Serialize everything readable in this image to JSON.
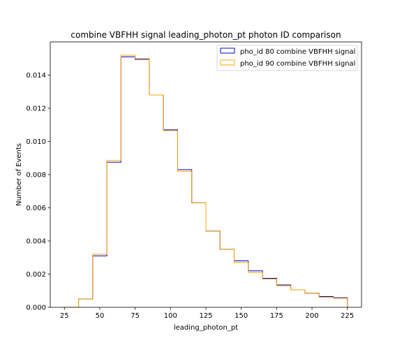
{
  "chart_data": {
    "type": "step-histogram",
    "title": "combine VBFHH signal leading_photon_pt photon ID comparison",
    "xlabel": "leading_photon_pt",
    "ylabel": "Number of Events",
    "xlim": [
      15,
      235
    ],
    "ylim": [
      0,
      0.016
    ],
    "x_ticks": [
      25,
      50,
      75,
      100,
      125,
      150,
      175,
      200,
      225
    ],
    "x_tick_labels": [
      "25",
      "50",
      "75",
      "100",
      "125",
      "150",
      "175",
      "200",
      "225"
    ],
    "y_ticks": [
      0,
      0.002,
      0.004,
      0.006,
      0.008,
      0.01,
      0.012,
      0.014
    ],
    "y_tick_labels": [
      "0.000",
      "0.002",
      "0.004",
      "0.006",
      "0.008",
      "0.010",
      "0.012",
      "0.014"
    ],
    "bin_edges": [
      25,
      35,
      45,
      55,
      65,
      75,
      85,
      95,
      105,
      115,
      125,
      135,
      145,
      155,
      165,
      175,
      185,
      195,
      205,
      215,
      225
    ],
    "legend_position": "top-right",
    "series": [
      {
        "name": "pho_id 80 combine VBFHH signal",
        "color": "#0000cc",
        "values": [
          0,
          0.0005,
          0.0031,
          0.00875,
          0.0151,
          0.01495,
          0.0128,
          0.0107,
          0.0083,
          0.0063,
          0.0046,
          0.0035,
          0.0028,
          0.0022,
          0.00175,
          0.00135,
          0.00105,
          0.00085,
          0.00065,
          0.00058
        ]
      },
      {
        "name": "pho_id 90 combine VBFHH signal",
        "color": "#ffa500",
        "values": [
          0,
          0.0005,
          0.0032,
          0.00885,
          0.0152,
          0.015,
          0.0128,
          0.01065,
          0.0082,
          0.0063,
          0.0046,
          0.0035,
          0.0027,
          0.0021,
          0.0017,
          0.0013,
          0.00105,
          0.00085,
          0.0006,
          0.00055
        ]
      }
    ]
  }
}
